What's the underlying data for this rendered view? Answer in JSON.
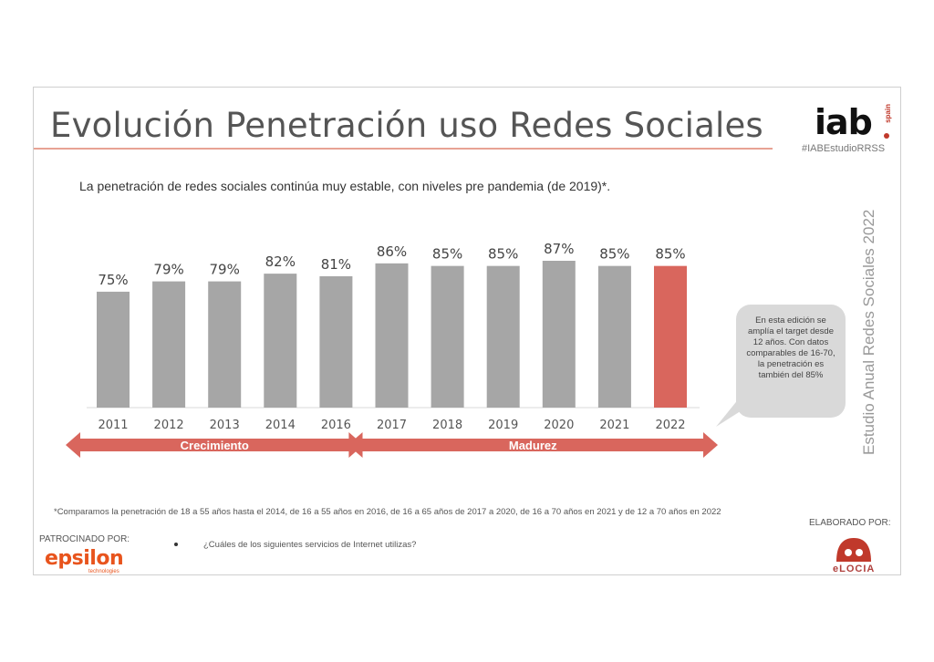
{
  "header": {
    "title": "Evolución Penetración uso Redes Sociales",
    "logo_text": "iab",
    "logo_sub": "spain",
    "hashtag": "#IABEstudioRRSS"
  },
  "subtitle": "La penetración de redes sociales continúa muy estable, con niveles pre pandemia (de 2019)*.",
  "side_label": "Estudio Anual Redes Sociales 2022",
  "bubble": "En esta edición se amplía el target desde 12 años. Con datos comparables de 16-70, la penetración es también del 85%",
  "footnote": "*Comparamos la penetración de 18 a 55 años hasta el 2014, de 16 a 55 años en 2016, de 16 a 65 años de 2017 a 2020, de 16 a 70 años en 2021 y de 12 a 70 años en 2022",
  "footer": {
    "sponsored_label": "PATROCINADO POR:",
    "sponsor_name": "epsilon",
    "sponsor_sub": "technologies",
    "question": "¿Cuáles de los siguientes servicios de Internet utilizas?",
    "made_by_label": "ELABORADO POR:",
    "made_by_name": "eLOCIA"
  },
  "chart_data": {
    "type": "bar",
    "categories": [
      "2011",
      "2012",
      "2013",
      "2014",
      "2016",
      "2017",
      "2018",
      "2019",
      "2020",
      "2021",
      "2022"
    ],
    "values": [
      75,
      79,
      79,
      82,
      81,
      86,
      85,
      85,
      87,
      85,
      85
    ],
    "value_labels": [
      "75%",
      "79%",
      "79%",
      "82%",
      "81%",
      "86%",
      "85%",
      "85%",
      "87%",
      "85%",
      "85%"
    ],
    "highlight_index": 10,
    "ylim": [
      0,
      100
    ],
    "grid": false,
    "phases": [
      {
        "label": "Crecimiento",
        "from": "2011",
        "to": "2016"
      },
      {
        "label": "Madurez",
        "from": "2017",
        "to": "2022"
      }
    ],
    "colors": {
      "bar": "#a6a6a6",
      "highlight": "#d9665d",
      "arrow": "#d9665d"
    }
  }
}
